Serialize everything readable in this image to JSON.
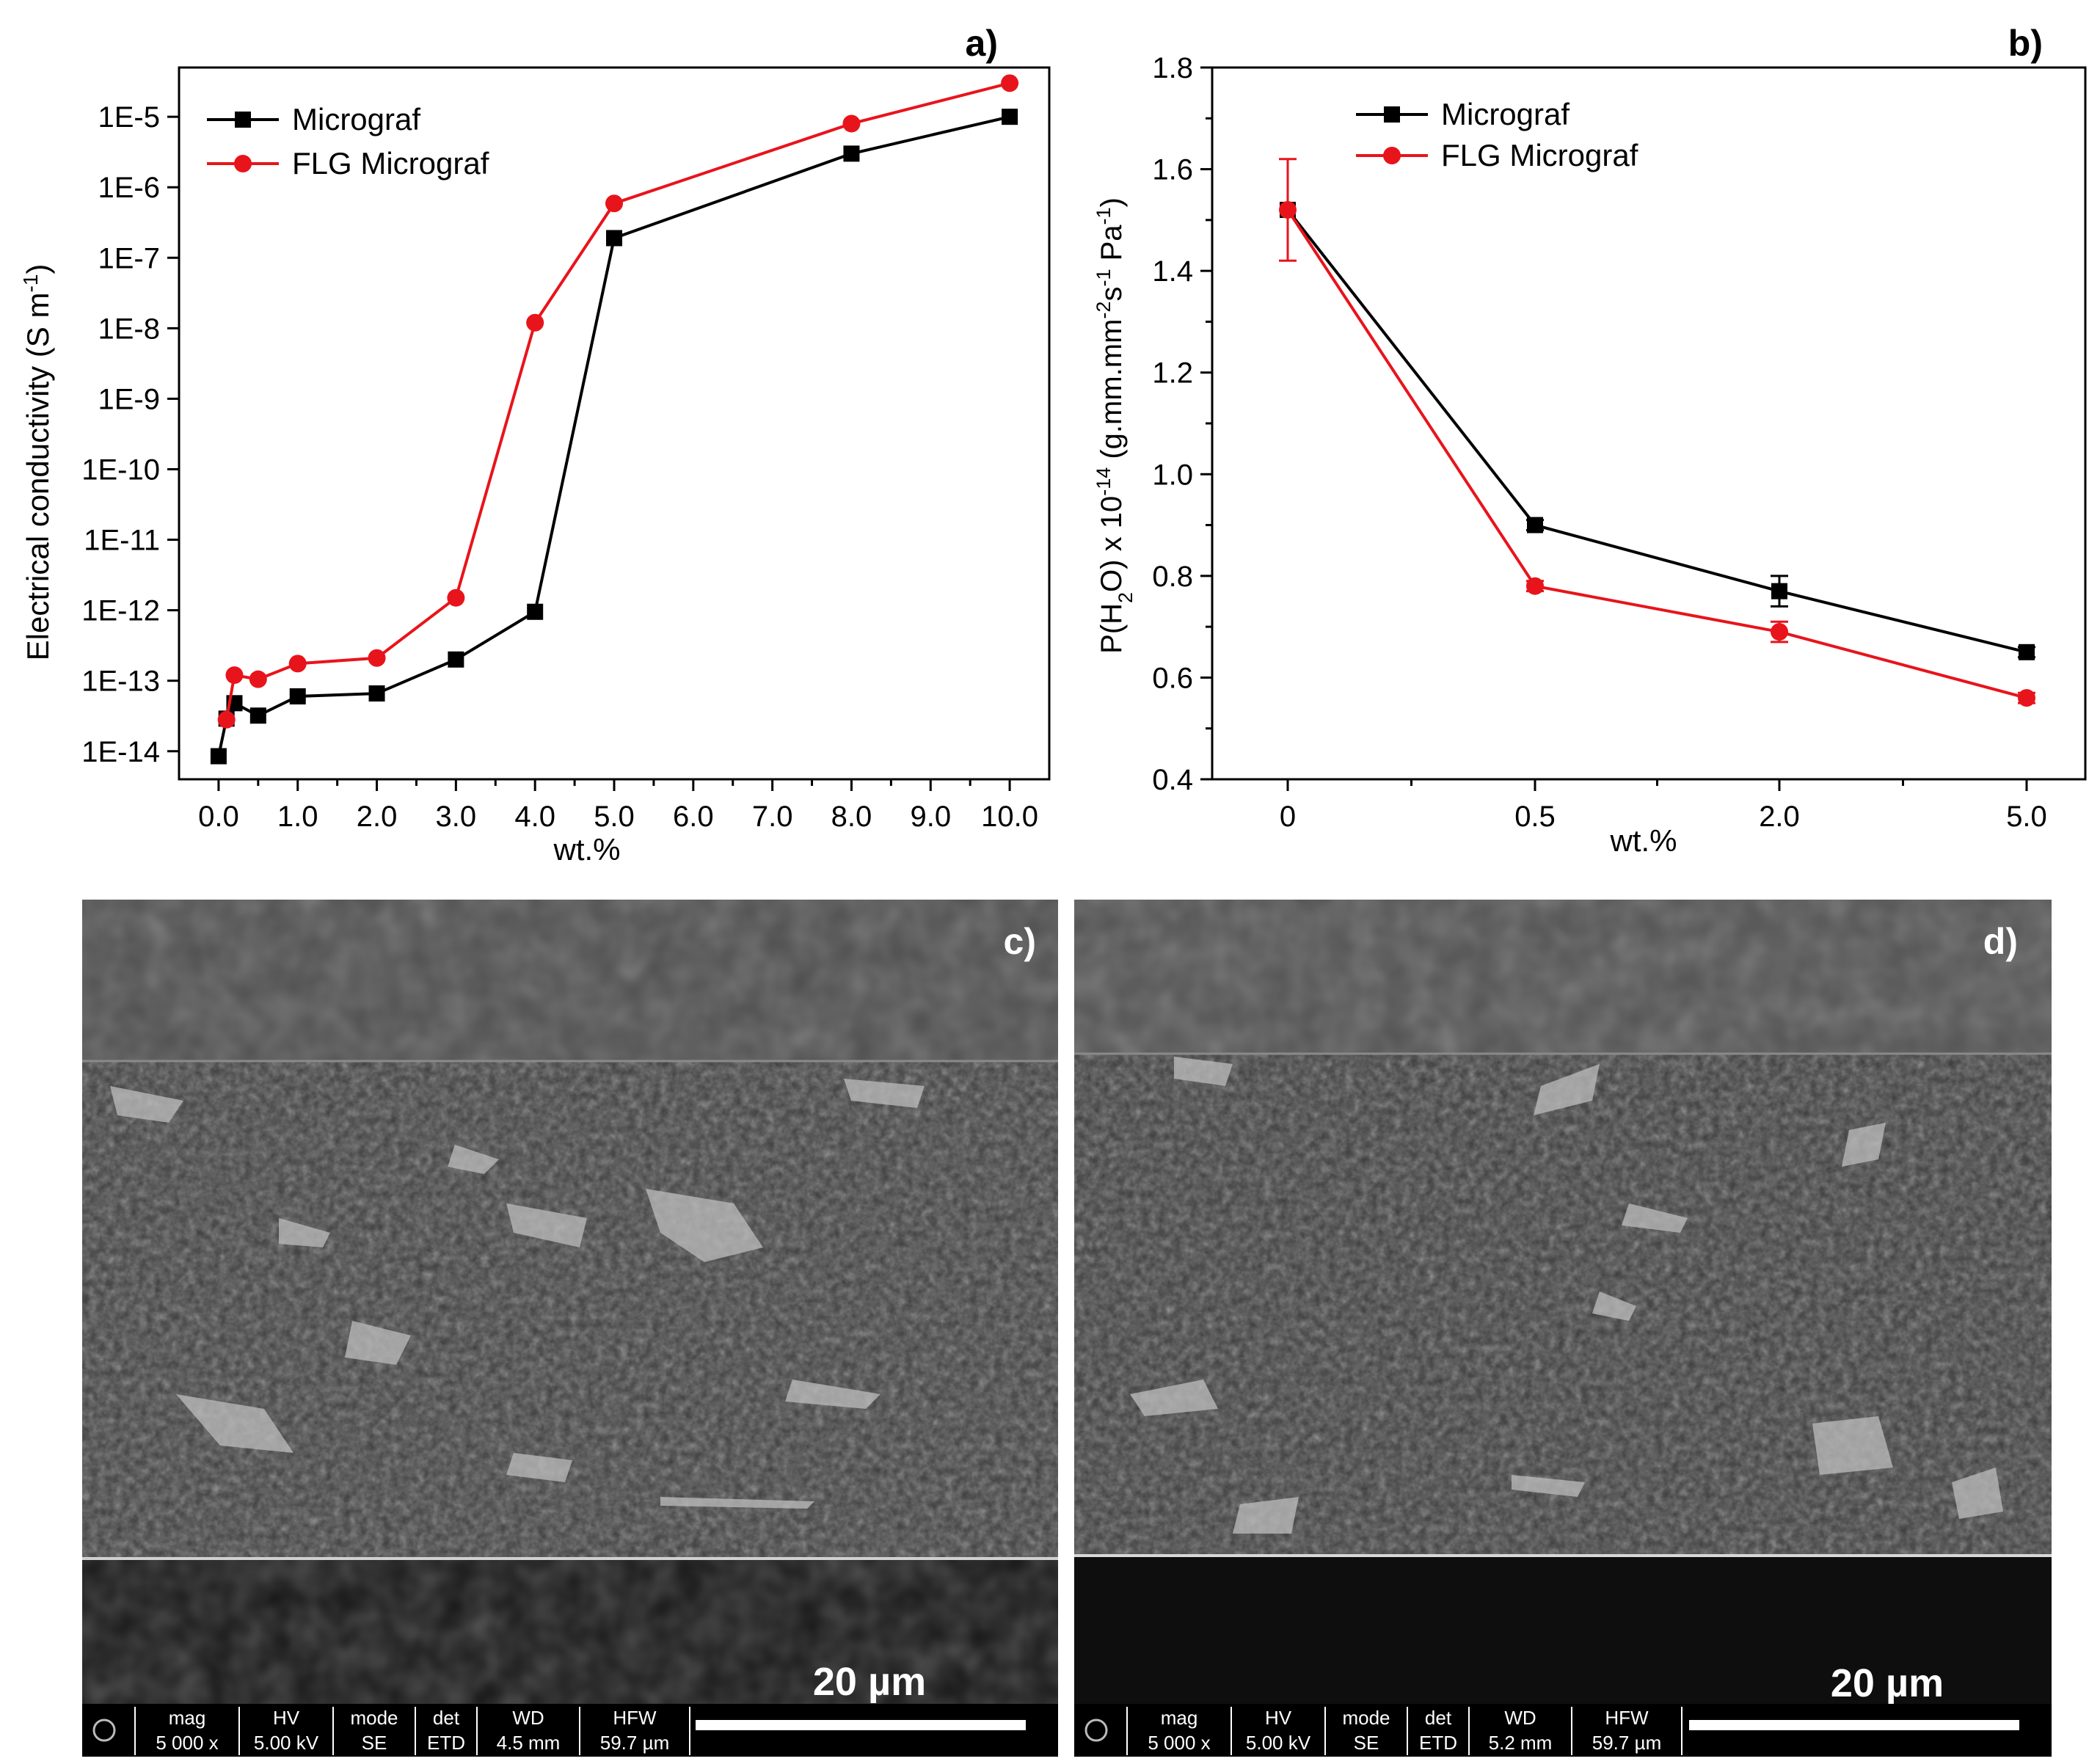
{
  "chart_data": [
    {
      "panel": "a)",
      "type": "line",
      "xlabel": "wt.%",
      "ylabel": "Electrical conductivity (S m-1)",
      "yscale": "log",
      "xlim": [
        -0.5,
        10.5
      ],
      "ylim": [
        4e-15,
        5e-05
      ],
      "xticks": [
        0,
        1,
        2,
        3,
        4,
        5,
        6,
        7,
        8,
        9,
        10
      ],
      "xtick_labels": [
        "0.0",
        "1.0",
        "2.0",
        "3.0",
        "4.0",
        "5.0",
        "6.0",
        "7.0",
        "8.0",
        "9.0",
        "10.0"
      ],
      "yticks": [
        1e-14,
        1e-13,
        1e-12,
        1e-11,
        1e-10,
        1e-09,
        1e-08,
        1e-07,
        1e-06,
        1e-05
      ],
      "ytick_labels": [
        "1E-14",
        "1E-13",
        "1E-12",
        "1E-11",
        "1E-10",
        "1E-9",
        "1E-8",
        "1E-7",
        "1E-6",
        "1E-5"
      ],
      "legend": "top-left",
      "grid": false,
      "series": [
        {
          "name": "Micrograf",
          "color": "#000000",
          "marker": "square",
          "x": [
            0,
            0.1,
            0.2,
            0.5,
            1,
            2,
            3,
            4,
            5,
            8,
            10
          ],
          "y": [
            8.5e-15,
            2.9e-14,
            4.8e-14,
            3.2e-14,
            6e-14,
            6.6e-14,
            2e-13,
            9.5e-13,
            1.9e-07,
            3e-06,
            1e-05
          ]
        },
        {
          "name": "FLG Micrograf",
          "color": "#e8141b",
          "marker": "circle",
          "x": [
            0.1,
            0.2,
            0.5,
            1,
            2,
            3,
            4,
            5,
            8,
            10
          ],
          "y": [
            2.8e-14,
            1.2e-13,
            1.05e-13,
            1.75e-13,
            2.1e-13,
            1.5e-12,
            1.2e-08,
            5.9e-07,
            8e-06,
            3e-05
          ]
        }
      ]
    },
    {
      "panel": "b)",
      "type": "line",
      "xlabel": "wt.%",
      "ylabel": "P(H2O) x 10-14 (g.mm.mm-2s-1 Pa-1)",
      "categories": [
        "0",
        "0.5",
        "2.0",
        "5.0"
      ],
      "ylim": [
        0.4,
        1.8
      ],
      "yticks": [
        0.4,
        0.6,
        0.8,
        1.0,
        1.2,
        1.4,
        1.6,
        1.8
      ],
      "ytick_labels": [
        "0.4",
        "0.6",
        "0.8",
        "1.0",
        "1.2",
        "1.4",
        "1.6",
        "1.8"
      ],
      "legend": "top-left",
      "grid": false,
      "series": [
        {
          "name": "Micrograf",
          "color": "#000000",
          "marker": "square",
          "values": [
            1.52,
            0.9,
            0.77,
            0.65
          ],
          "errors": [
            0,
            0.01,
            0.03,
            0.01
          ]
        },
        {
          "name": "FLG Micrograf",
          "color": "#e8141b",
          "marker": "circle",
          "values": [
            1.52,
            0.78,
            0.69,
            0.56
          ],
          "errors": [
            0.1,
            0.01,
            0.02,
            0.01
          ]
        }
      ]
    }
  ],
  "sem": [
    {
      "panel": "c)",
      "scale_label": "20 µm",
      "info": [
        {
          "h": "mag",
          "v": "5 000 x"
        },
        {
          "h": "HV",
          "v": "5.00 kV"
        },
        {
          "h": "mode",
          "v": "SE"
        },
        {
          "h": "det",
          "v": "ETD"
        },
        {
          "h": "WD",
          "v": "4.5 mm"
        },
        {
          "h": "HFW",
          "v": "59.7 µm"
        }
      ]
    },
    {
      "panel": "d)",
      "scale_label": "20 µm",
      "info": [
        {
          "h": "mag",
          "v": "5 000 x"
        },
        {
          "h": "HV",
          "v": "5.00 kV"
        },
        {
          "h": "mode",
          "v": "SE"
        },
        {
          "h": "det",
          "v": "ETD"
        },
        {
          "h": "WD",
          "v": "5.2 mm"
        },
        {
          "h": "HFW",
          "v": "59.7 µm"
        }
      ]
    }
  ]
}
